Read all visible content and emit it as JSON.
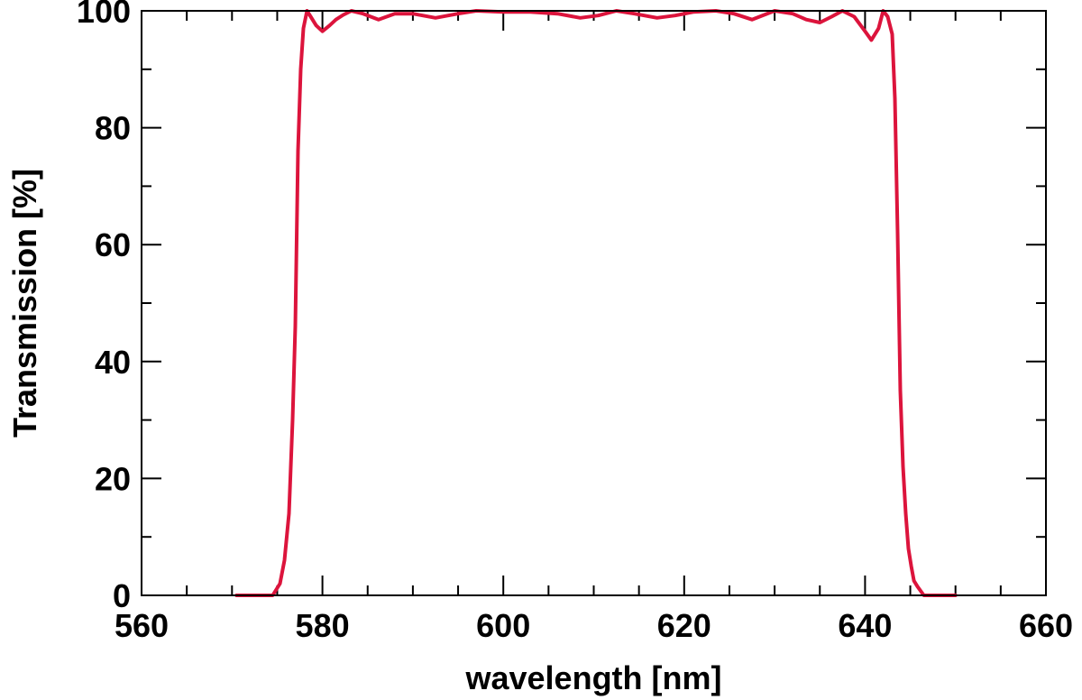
{
  "chart_data": {
    "type": "line",
    "title": "",
    "xlabel": "wavelength [nm]",
    "ylabel": "Transmission [%]",
    "xlim": [
      560,
      660
    ],
    "ylim": [
      0,
      100
    ],
    "x_ticks": [
      560,
      580,
      600,
      620,
      640,
      660
    ],
    "y_ticks": [
      0,
      20,
      40,
      60,
      80,
      100
    ],
    "x_minor_step": 5,
    "y_minor_step": 10,
    "grid": false,
    "series_color": "#dc143c",
    "series": [
      {
        "x": [
          570.5,
          572,
          573.5,
          574.5,
          575.3,
          575.8,
          576.3,
          576.7,
          577.0,
          577.3,
          577.6,
          577.9,
          578.3,
          578.7,
          579.3,
          580.0,
          580.8,
          581.5,
          582.3,
          583.2,
          584.5,
          586.2,
          588.0,
          590.0,
          592.5,
          595.0,
          597.0,
          600.0,
          603.0,
          606.0,
          608.5,
          610.5,
          612.5,
          614.5,
          617.0,
          619.0,
          621.0,
          623.5,
          625.5,
          627.5,
          630.0,
          632.0,
          633.5,
          635.0,
          636.3,
          637.5,
          638.8,
          640.0,
          640.7,
          641.5,
          642.0,
          642.5,
          643.0,
          643.3,
          643.6,
          643.9,
          644.2,
          644.5,
          644.8,
          645.1,
          645.4,
          645.8,
          646.5,
          647.5,
          648.5,
          650.0
        ],
        "y": [
          0,
          0,
          0,
          0,
          2,
          6,
          14,
          30,
          46,
          76,
          90,
          97,
          100,
          99,
          97.5,
          96.5,
          97.5,
          98.5,
          99.3,
          100,
          99.5,
          98.5,
          99.5,
          99.5,
          98.8,
          99.5,
          100,
          99.8,
          99.8,
          99.5,
          98.8,
          99.2,
          100,
          99.5,
          98.8,
          99.2,
          99.8,
          100,
          99.5,
          98.5,
          100,
          99.5,
          98.5,
          98,
          99,
          100,
          99,
          96.5,
          95,
          97,
          100,
          99,
          96,
          85,
          62,
          35,
          22,
          14,
          8,
          5,
          2.5,
          1.5,
          0,
          0,
          0,
          0
        ]
      }
    ]
  }
}
